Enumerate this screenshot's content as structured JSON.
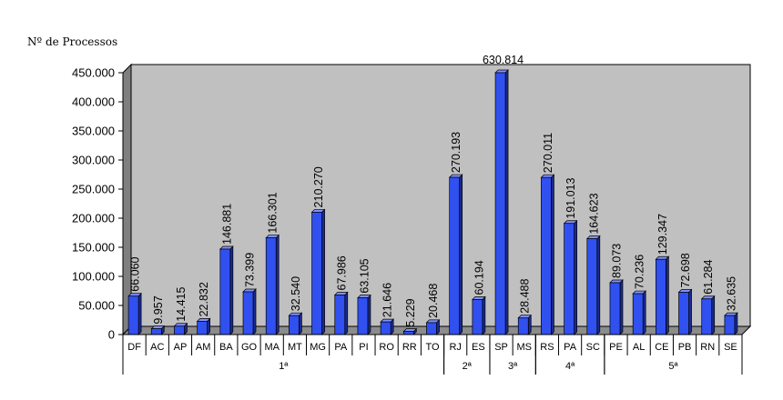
{
  "chart_data": {
    "type": "bar",
    "ylabel": "Nº de Processos",
    "ylim": [
      0,
      450000
    ],
    "yticks": [
      {
        "value": 0,
        "label": "0"
      },
      {
        "value": 50000,
        "label": "50.000"
      },
      {
        "value": 100000,
        "label": "100.000"
      },
      {
        "value": 150000,
        "label": "150.000"
      },
      {
        "value": 200000,
        "label": "200.000"
      },
      {
        "value": 250000,
        "label": "250.000"
      },
      {
        "value": 300000,
        "label": "300.000"
      },
      {
        "value": 350000,
        "label": "350.000"
      },
      {
        "value": 400000,
        "label": "400.000"
      },
      {
        "value": 450000,
        "label": "450.000"
      }
    ],
    "categories": [
      "DF",
      "AC",
      "AP",
      "AM",
      "BA",
      "GO",
      "MA",
      "MT",
      "MG",
      "PA",
      "PI",
      "RO",
      "RR",
      "TO",
      "RJ",
      "ES",
      "SP",
      "MS",
      "RS",
      "PA",
      "SC",
      "PE",
      "AL",
      "CE",
      "PB",
      "RN",
      "SE"
    ],
    "values": [
      66060,
      9957,
      14415,
      22832,
      146881,
      73399,
      166301,
      32540,
      210270,
      67986,
      63105,
      21646,
      5229,
      20468,
      270193,
      60194,
      630814,
      28488,
      270011,
      191013,
      164623,
      89073,
      70236,
      129347,
      72698,
      61284,
      32635
    ],
    "value_labels": [
      "66.060",
      "9.957",
      "14.415",
      "22.832",
      "146.881",
      "73.399",
      "166.301",
      "32.540",
      "210.270",
      "67.986",
      "63.105",
      "21.646",
      "5.229",
      "20.468",
      "270.193",
      "60.194",
      "630.814",
      "28.488",
      "270.011",
      "191.013",
      "164.623",
      "89.073",
      "70.236",
      "129.347",
      "72.698",
      "61.284",
      "32.635"
    ],
    "groups": [
      {
        "label": "1ª",
        "start": 0,
        "end": 13
      },
      {
        "label": "2ª",
        "start": 14,
        "end": 15
      },
      {
        "label": "3ª",
        "start": 16,
        "end": 17
      },
      {
        "label": "4ª",
        "start": 18,
        "end": 20
      },
      {
        "label": "5ª",
        "start": 21,
        "end": 26
      }
    ],
    "clipped_bars": [
      16
    ],
    "colors": {
      "bar_front": "#3050f0",
      "bar_side": "#1a2a90",
      "bar_top": "#7f92ff",
      "plot_back": "#c0c0c0",
      "plot_left_wall": "#7f7f7f",
      "plot_floor": "#8c8c8c"
    },
    "grid": false,
    "legend": "none"
  }
}
